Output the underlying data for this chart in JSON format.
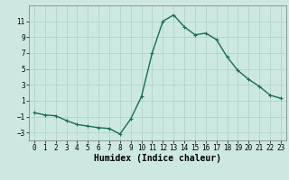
{
  "x": [
    0,
    1,
    2,
    3,
    4,
    5,
    6,
    7,
    8,
    9,
    10,
    11,
    12,
    13,
    14,
    15,
    16,
    17,
    18,
    19,
    20,
    21,
    22,
    23
  ],
  "y": [
    -0.5,
    -0.8,
    -0.9,
    -1.5,
    -2.0,
    -2.2,
    -2.4,
    -2.5,
    -3.2,
    -1.3,
    1.5,
    7.0,
    11.0,
    11.8,
    10.3,
    9.3,
    9.5,
    8.7,
    6.5,
    4.8,
    3.7,
    2.8,
    1.7,
    1.3
  ],
  "line_color": "#1a6b5a",
  "marker": "+",
  "marker_size": 3.5,
  "marker_linewidth": 0.8,
  "bg_color": "#cce8e0",
  "grid_color": "#aad0c8",
  "xlabel": "Humidex (Indice chaleur)",
  "xlim": [
    -0.5,
    23.5
  ],
  "ylim": [
    -4,
    13
  ],
  "yticks": [
    -3,
    -1,
    1,
    3,
    5,
    7,
    9,
    11
  ],
  "xticks": [
    0,
    1,
    2,
    3,
    4,
    5,
    6,
    7,
    8,
    9,
    10,
    11,
    12,
    13,
    14,
    15,
    16,
    17,
    18,
    19,
    20,
    21,
    22,
    23
  ],
  "tick_fontsize": 5.5,
  "xlabel_fontsize": 7.0,
  "linewidth": 1.0
}
